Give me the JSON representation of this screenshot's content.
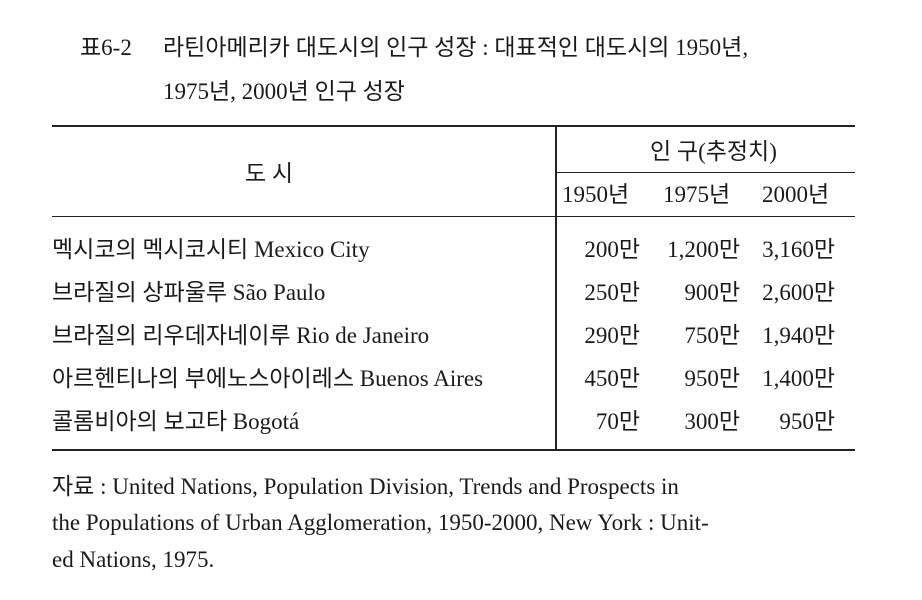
{
  "header": {
    "label": "표6-2",
    "title_lines": [
      "라틴아메리카 대도시의 인구 성장 : 대표적인 대도시의 1950년,",
      "1975년, 2000년 인구 성장"
    ]
  },
  "table": {
    "city_header": "도 시",
    "population_header": "인 구(추정치)",
    "years": [
      "1950년",
      "1975년",
      "2000년"
    ],
    "rows": [
      [
        "멕시코의 멕시코시티 Mexico City",
        "200만",
        "1,200만",
        "3,160만"
      ],
      [
        "브라질의 상파울루 São Paulo",
        "250만",
        "900만",
        "2,600만"
      ],
      [
        "브라질의 리우데자네이루 Rio de Janeiro",
        "290만",
        "750만",
        "1,940만"
      ],
      [
        "아르헨티나의 부에노스아이레스 Buenos Aires",
        "450만",
        "950만",
        "1,400만"
      ],
      [
        "콜롬비아의 보고타 Bogotá",
        "70만",
        "300만",
        "950만"
      ]
    ]
  },
  "source": {
    "lines": [
      "자료 : United Nations, Population Division, Trends and Prospects in",
      "the Populations of Urban Agglomeration, 1950-2000, New York : Unit-",
      "ed Nations, 1975."
    ]
  }
}
